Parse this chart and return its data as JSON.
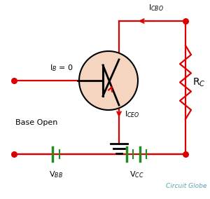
{
  "bg_color": "#ffffff",
  "line_color": "#000000",
  "circuit_red": "#dd0000",
  "green_color": "#228B22",
  "transistor_fill": "#f5d5c0",
  "label_IB": "I$_B$ = 0",
  "label_ICBO": "I$_{CBO}$",
  "label_ICEO": "I$_{CEO}$",
  "label_RC": "R$_C$",
  "label_VBB": "V$_{BB}$",
  "label_VCC": "V$_{CC}$",
  "label_base_open": "Base Open",
  "label_circuit_globe": "Circuit Globe",
  "figsize": [
    3.0,
    2.84
  ],
  "dpi": 100
}
